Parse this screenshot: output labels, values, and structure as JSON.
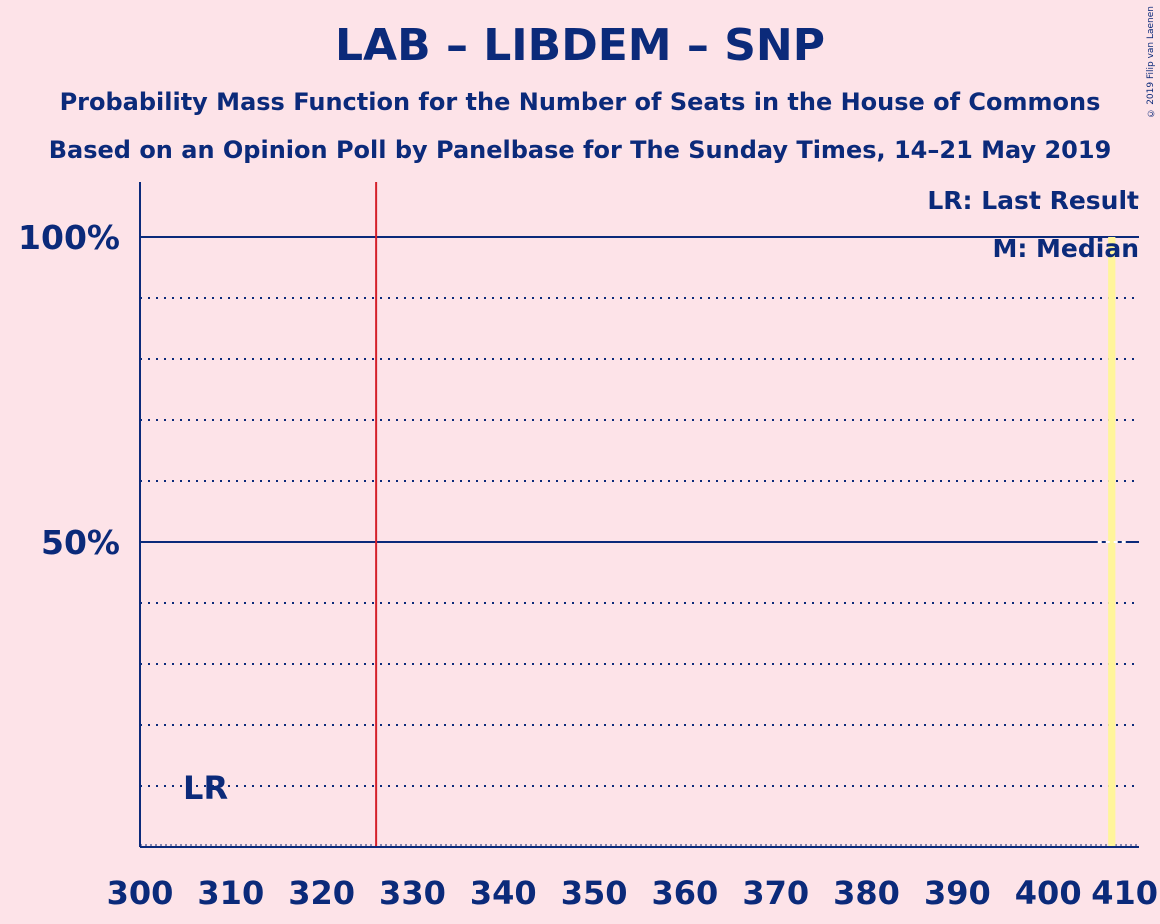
{
  "header": {
    "title": "LAB – LIBDEM – SNP",
    "subtitle1": "Probability Mass Function for the Number of Seats in the House of Commons",
    "subtitle2": "Based on an Opinion Poll by Panelbase for The Sunday Times, 14–21 May 2019",
    "copyright": "© 2019 Filip van Laenen"
  },
  "legend": {
    "last_result": "LR: Last Result",
    "median": "M: Median"
  },
  "colors": {
    "background": "#fde3e8",
    "axis": "#0b2a7a",
    "majority_line": "#d4202a",
    "bar": "#fff59a"
  },
  "chart_data": {
    "type": "bar",
    "title": "LAB – LIBDEM – SNP",
    "xlabel": "",
    "ylabel": "",
    "xlim": [
      300,
      410
    ],
    "ylim": [
      0,
      1.09
    ],
    "x_ticks": [
      "300",
      "310",
      "320",
      "330",
      "340",
      "350",
      "360",
      "370",
      "380",
      "390",
      "400",
      "410"
    ],
    "x_tick_values": [
      300,
      310,
      320,
      330,
      340,
      350,
      360,
      370,
      380,
      390,
      400,
      410
    ],
    "y_ticks": [
      "50%",
      "100%"
    ],
    "y_tick_values": [
      0.5,
      1.0
    ],
    "y_minor_gridlines": [
      0.1,
      0.2,
      0.3,
      0.4,
      0.6,
      0.7,
      0.8,
      0.9
    ],
    "majority_line": 326,
    "last_result": {
      "x": 307,
      "label": "LR"
    },
    "median": 407,
    "bars": [
      {
        "x": 407,
        "probability": 1.0
      }
    ],
    "grid": true,
    "legend_position": "top-right"
  }
}
